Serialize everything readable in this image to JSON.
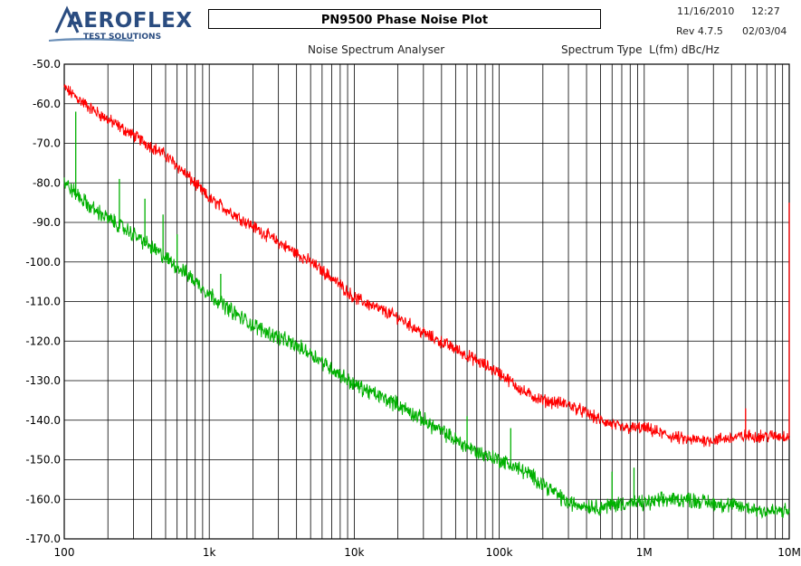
{
  "header": {
    "brand": "AEROFLEX",
    "brand_sub": "TEST SOLUTIONS",
    "title": "PN9500 Phase Noise Plot",
    "date": "11/16/2010",
    "time": "12:27",
    "rev": "Rev 4.7.5",
    "rev_date": "02/03/04",
    "subtitle": "Noise Spectrum Analyser",
    "spectrum_type": "Spectrum Type  L(fm) dBc/Hz"
  },
  "chart_data": {
    "type": "line",
    "title": "Noise Spectrum Analyser",
    "xlabel": "",
    "ylabel": "",
    "xscale": "log",
    "xlim": [
      100,
      10000000
    ],
    "ylim": [
      -170,
      -50
    ],
    "grid": true,
    "x_tick_labels": [
      "100",
      "1k",
      "10k",
      "100k",
      "1M",
      "10M"
    ],
    "y_tick_labels": [
      "-50.0",
      "-60.0",
      "-70.0",
      "-80.0",
      "-90.0",
      "-100.0",
      "-110.0",
      "-120.0",
      "-130.0",
      "-140.0",
      "-150.0",
      "-160.0",
      "-170.0"
    ],
    "colors": {
      "series_1": "#ff0000",
      "series_2": "#00b000",
      "grid": "#000000"
    },
    "series": [
      {
        "color": "#ff0000",
        "x": [
          100,
          150,
          200,
          300,
          500,
          700,
          1000,
          1500,
          2000,
          3000,
          5000,
          7000,
          10000,
          15000,
          20000,
          30000,
          50000,
          70000,
          100000,
          150000,
          200000,
          300000,
          500000,
          700000,
          1000000,
          1500000,
          2000000,
          3000000,
          5000000,
          7000000,
          10000000
        ],
        "y": [
          -56,
          -61,
          -64,
          -68,
          -73,
          -78,
          -84,
          -88,
          -91,
          -95,
          -100,
          -104,
          -109,
          -112,
          -114,
          -118,
          -122,
          -125,
          -128,
          -133,
          -135,
          -136,
          -140,
          -142,
          -142,
          -144,
          -145,
          -145,
          -144,
          -144,
          -144
        ],
        "spikes": [
          {
            "x": 5000000,
            "y": -137
          },
          {
            "x": 10000000,
            "y": -85
          }
        ]
      },
      {
        "color": "#00b000",
        "x": [
          100,
          150,
          200,
          300,
          500,
          700,
          1000,
          1500,
          2000,
          3000,
          5000,
          7000,
          10000,
          15000,
          20000,
          30000,
          50000,
          70000,
          100000,
          150000,
          200000,
          300000,
          500000,
          700000,
          1000000,
          1500000,
          2000000,
          3000000,
          5000000,
          7000000,
          10000000
        ],
        "y": [
          -80,
          -86,
          -89,
          -93,
          -99,
          -103,
          -108,
          -113,
          -116,
          -119,
          -123,
          -127,
          -131,
          -134,
          -136,
          -140,
          -145,
          -148,
          -150,
          -153,
          -156,
          -161,
          -162,
          -161,
          -161,
          -160,
          -160,
          -161,
          -162,
          -163,
          -163
        ],
        "spikes": [
          {
            "x": 120,
            "y": -62
          },
          {
            "x": 240,
            "y": -79
          },
          {
            "x": 360,
            "y": -84
          },
          {
            "x": 480,
            "y": -88
          },
          {
            "x": 600,
            "y": -93
          },
          {
            "x": 1200,
            "y": -103
          },
          {
            "x": 60000,
            "y": -139
          },
          {
            "x": 120000,
            "y": -142
          },
          {
            "x": 600000,
            "y": -153
          },
          {
            "x": 850000,
            "y": -152
          }
        ]
      }
    ]
  }
}
